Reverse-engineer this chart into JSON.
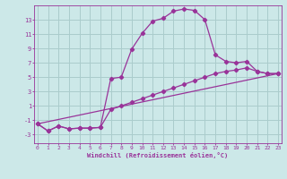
{
  "xlabel": "Windchill (Refroidissement éolien,°C)",
  "background_color": "#cce8e8",
  "grid_color": "#aacccc",
  "line_color": "#993399",
  "x_ticks": [
    0,
    1,
    2,
    3,
    4,
    5,
    6,
    7,
    8,
    9,
    10,
    11,
    12,
    13,
    14,
    15,
    16,
    17,
    18,
    19,
    20,
    21,
    22,
    23
  ],
  "y_ticks": [
    -3,
    -1,
    1,
    3,
    5,
    7,
    9,
    11,
    13
  ],
  "ylim": [
    -4.2,
    15.0
  ],
  "xlim": [
    -0.3,
    23.3
  ],
  "line1_x": [
    0,
    1,
    2,
    3,
    4,
    5,
    6,
    7,
    8,
    9,
    10,
    11,
    12,
    13,
    14,
    15,
    16,
    17,
    18,
    19,
    20,
    21,
    22,
    23
  ],
  "line1_y": [
    -1.5,
    -2.5,
    -1.8,
    -2.2,
    -2.1,
    -2.1,
    -2.0,
    4.8,
    5.0,
    8.9,
    11.1,
    12.8,
    13.2,
    14.2,
    14.5,
    14.3,
    13.0,
    8.1,
    7.2,
    7.0,
    7.2,
    5.8,
    5.5,
    5.5
  ],
  "line2_x": [
    0,
    1,
    2,
    3,
    4,
    5,
    6,
    7,
    8,
    9,
    10,
    11,
    12,
    13,
    14,
    15,
    16,
    17,
    18,
    19,
    20,
    21,
    22,
    23
  ],
  "line2_y": [
    -1.5,
    -2.5,
    -1.8,
    -2.2,
    -2.1,
    -2.1,
    -2.0,
    0.5,
    1.0,
    1.5,
    2.0,
    2.5,
    3.0,
    3.5,
    4.0,
    4.5,
    5.0,
    5.5,
    5.8,
    6.0,
    6.3,
    5.8,
    5.5,
    5.5
  ],
  "line3_x": [
    0,
    23
  ],
  "line3_y": [
    -1.5,
    5.5
  ]
}
